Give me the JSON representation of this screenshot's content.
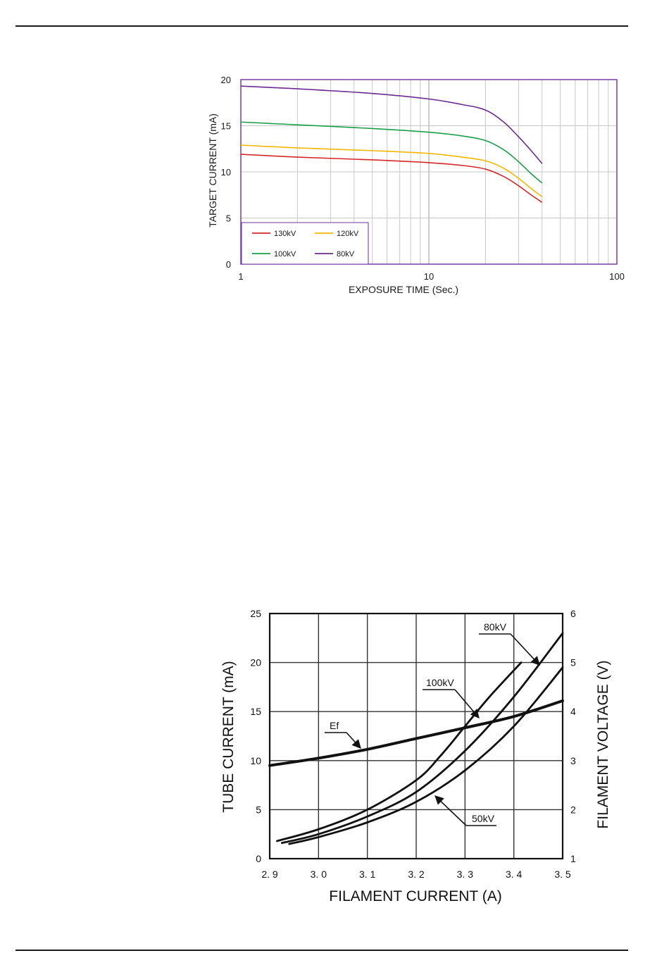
{
  "charts": [
    {
      "type": "line",
      "x_scale": "log",
      "xlabel": "EXPOSURE TIME (Sec.)",
      "ylabel": "TARGET CURRENT (mA)",
      "xlim": [
        1,
        100
      ],
      "ylim": [
        0,
        20
      ],
      "x_ticks": [
        "1",
        "10",
        "100"
      ],
      "y_ticks": [
        "0",
        "5",
        "10",
        "15",
        "20"
      ],
      "grid": true,
      "legend_position": "bottom-left",
      "frame_color": "#7030a0",
      "series": [
        {
          "name": "130kV",
          "color": "#d62828",
          "x": [
            1,
            2,
            5,
            10,
            15,
            20,
            25,
            30,
            35,
            40
          ],
          "values": [
            11.9,
            11.6,
            11.3,
            11.0,
            10.7,
            10.3,
            9.5,
            8.5,
            7.5,
            6.7
          ]
        },
        {
          "name": "120kV",
          "color": "#f5b800",
          "x": [
            1,
            2,
            5,
            10,
            15,
            20,
            25,
            30,
            35,
            40
          ],
          "values": [
            12.9,
            12.6,
            12.3,
            12.0,
            11.6,
            11.2,
            10.4,
            9.3,
            8.2,
            7.3
          ]
        },
        {
          "name": "100kV",
          "color": "#1aa04a",
          "x": [
            1,
            2,
            5,
            10,
            15,
            20,
            25,
            30,
            35,
            40
          ],
          "values": [
            15.4,
            15.1,
            14.7,
            14.3,
            13.9,
            13.4,
            12.4,
            11.1,
            9.8,
            8.8
          ]
        },
        {
          "name": "80kV",
          "color": "#6a2c91",
          "x": [
            1,
            2,
            5,
            10,
            15,
            20,
            25,
            30,
            35,
            40
          ],
          "values": [
            19.3,
            19.0,
            18.5,
            17.9,
            17.3,
            16.7,
            15.4,
            13.8,
            12.3,
            10.9
          ]
        }
      ]
    },
    {
      "type": "line",
      "xlabel": "FILAMENT CURRENT (A)",
      "ylabel": "TUBE CURRENT (mA)",
      "y2label": "FILAMENT VOLTAGE (V)",
      "xlim": [
        2.9,
        3.5
      ],
      "ylim": [
        0,
        25
      ],
      "y2lim": [
        1,
        6
      ],
      "x_ticks": [
        "2. 9",
        "3. 0",
        "3. 1",
        "3. 2",
        "3. 3",
        "3. 4",
        "3. 5"
      ],
      "y_ticks": [
        "0",
        "5",
        "10",
        "15",
        "20",
        "25"
      ],
      "y2_ticks": [
        "1",
        "2",
        "3",
        "4",
        "5",
        "6"
      ],
      "grid": true,
      "series": [
        {
          "name": "Ef",
          "axis": "right",
          "x": [
            2.9,
            3.0,
            3.1,
            3.2,
            3.3,
            3.4,
            3.5
          ],
          "values": [
            2.9,
            3.05,
            3.23,
            3.45,
            3.67,
            3.9,
            4.22
          ]
        },
        {
          "name": "100kV",
          "axis": "left",
          "x": [
            2.915,
            3.0,
            3.1,
            3.2,
            3.25,
            3.3,
            3.35,
            3.415
          ],
          "values": [
            1.8,
            3.0,
            5.0,
            8.0,
            10.5,
            13.5,
            16.5,
            20.0
          ]
        },
        {
          "name": "80kV",
          "axis": "left",
          "x": [
            2.925,
            3.0,
            3.1,
            3.2,
            3.3,
            3.4,
            3.5
          ],
          "values": [
            1.6,
            2.5,
            4.3,
            6.8,
            11.0,
            16.5,
            23.0
          ]
        },
        {
          "name": "50kV",
          "axis": "left",
          "x": [
            2.94,
            3.0,
            3.1,
            3.2,
            3.3,
            3.4,
            3.5
          ],
          "values": [
            1.5,
            2.2,
            3.7,
            5.8,
            9.0,
            13.5,
            19.5
          ]
        }
      ],
      "annotations": [
        {
          "text": "Ef",
          "target": "Ef"
        },
        {
          "text": "100kV",
          "target": "100kV"
        },
        {
          "text": "80kV",
          "target": "80kV"
        },
        {
          "text": "50kV",
          "target": "50kV"
        }
      ]
    }
  ]
}
